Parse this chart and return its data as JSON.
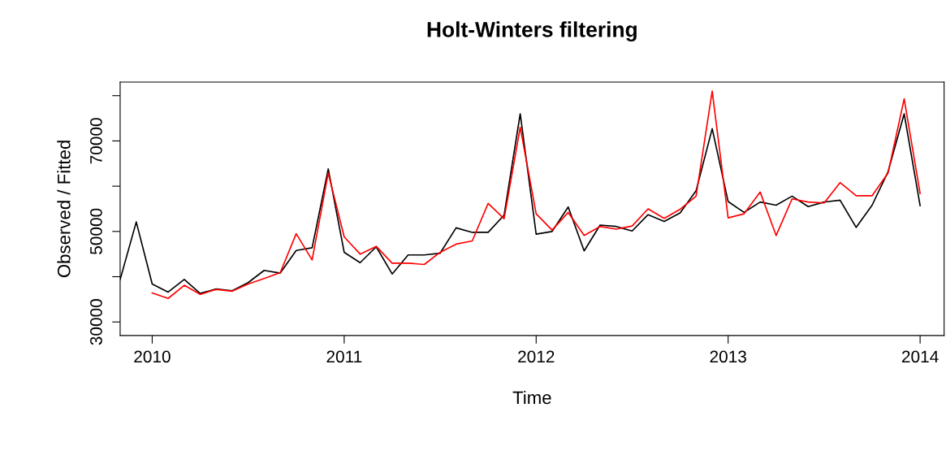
{
  "chart_data": {
    "type": "line",
    "title": "Holt-Winters filtering",
    "xlabel": "Time",
    "ylabel": "Observed / Fitted",
    "xlim": [
      2009.833,
      2014.125
    ],
    "xticks": [
      2010,
      2011,
      2012,
      2013,
      2014
    ],
    "ylim": [
      27000,
      83000
    ],
    "yticks": [
      30000,
      {
        "value": 40000,
        "label": null
      },
      50000,
      {
        "value": 60000,
        "label": null
      },
      70000,
      {
        "value": 80000,
        "label": null
      }
    ],
    "grid": false,
    "series": [
      {
        "color": "#000000",
        "x": [
          2009.833,
          2009.917,
          2010.0,
          2010.083,
          2010.167,
          2010.25,
          2010.333,
          2010.417,
          2010.5,
          2010.583,
          2010.667,
          2010.75,
          2010.833,
          2010.917,
          2011.0,
          2011.083,
          2011.167,
          2011.25,
          2011.333,
          2011.417,
          2011.5,
          2011.583,
          2011.667,
          2011.75,
          2011.833,
          2011.917,
          2012.0,
          2012.083,
          2012.167,
          2012.25,
          2012.333,
          2012.417,
          2012.5,
          2012.583,
          2012.667,
          2012.75,
          2012.833,
          2012.917,
          2013.0,
          2013.083,
          2013.167,
          2013.25,
          2013.333,
          2013.417,
          2013.5,
          2013.583,
          2013.667,
          2013.75,
          2013.833,
          2013.917,
          2014.0
        ],
        "values": [
          39400,
          52100,
          38400,
          36600,
          39400,
          36300,
          37300,
          36900,
          38700,
          41400,
          40800,
          45800,
          46400,
          63800,
          45400,
          43100,
          46600,
          40600,
          44800,
          44800,
          45200,
          50800,
          49800,
          49800,
          53600,
          76000,
          49400,
          50000,
          55400,
          45700,
          51400,
          51100,
          50100,
          53700,
          52200,
          54100,
          59000,
          72700,
          56600,
          54200,
          56500,
          55800,
          57800,
          55500,
          56500,
          56900,
          50900,
          55800,
          63200,
          76000,
          55700
        ]
      },
      {
        "color": "#ff0000",
        "x": [
          2010.0,
          2010.083,
          2010.167,
          2010.25,
          2010.333,
          2010.417,
          2010.5,
          2010.583,
          2010.667,
          2010.75,
          2010.833,
          2010.917,
          2011.0,
          2011.083,
          2011.167,
          2011.25,
          2011.333,
          2011.417,
          2011.5,
          2011.583,
          2011.667,
          2011.75,
          2011.833,
          2011.917,
          2012.0,
          2012.083,
          2012.167,
          2012.25,
          2012.333,
          2012.417,
          2012.5,
          2012.583,
          2012.667,
          2012.75,
          2012.833,
          2012.917,
          2013.0,
          2013.083,
          2013.167,
          2013.25,
          2013.333,
          2013.417,
          2013.5,
          2013.583,
          2013.667,
          2013.75,
          2013.833,
          2013.917,
          2014.0
        ],
        "values": [
          36400,
          35200,
          38100,
          36100,
          37200,
          36800,
          38400,
          39600,
          40900,
          49500,
          43700,
          62900,
          48800,
          45000,
          46700,
          43000,
          43000,
          42700,
          45400,
          47200,
          47900,
          56200,
          52800,
          73000,
          53900,
          50300,
          54200,
          49100,
          51100,
          50500,
          51200,
          55000,
          52900,
          54900,
          57800,
          81000,
          53000,
          53900,
          58700,
          49100,
          57200,
          56500,
          56300,
          60800,
          57900,
          57900,
          62900,
          79300,
          58400
        ]
      }
    ]
  }
}
